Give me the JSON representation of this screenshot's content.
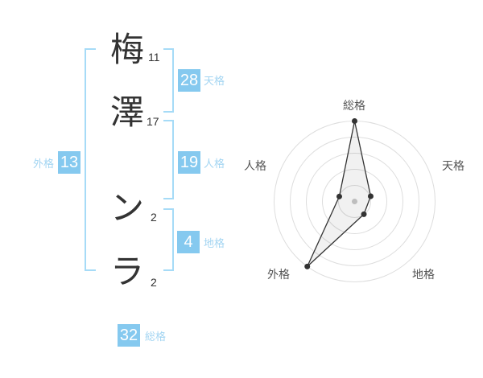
{
  "name_display": {
    "surname": [
      {
        "char": "梅",
        "strokes": "11"
      },
      {
        "char": "澤",
        "strokes": "17"
      }
    ],
    "given_name": [
      {
        "char": "ン",
        "strokes": "2"
      },
      {
        "char": "ラ",
        "strokes": "2"
      }
    ]
  },
  "gokaku": {
    "tenkaku": {
      "value": "28",
      "label": "天格"
    },
    "jinkaku": {
      "value": "19",
      "label": "人格"
    },
    "chikaku": {
      "value": "4",
      "label": "地格"
    },
    "gaikaku": {
      "value": "13",
      "label": "外格"
    },
    "soukaku": {
      "value": "32",
      "label": "総格"
    }
  },
  "colors": {
    "accent_blue": "#85c9ef",
    "light_blue_label": "#a3d5f2",
    "bracket_blue": "#a6dbf7",
    "dark_text": "#333333",
    "grid_gray": "#dddddd",
    "center_dot": "#c9c9c9",
    "polygon_stroke": "#333333",
    "polygon_fill": "rgba(0,0,0,0.055)"
  },
  "chart_data": {
    "type": "radar",
    "axes": [
      "総格",
      "天格",
      "地格",
      "外格",
      "人格"
    ],
    "values": [
      5,
      1.05,
      0.98,
      5,
      1
    ],
    "max": 5,
    "rings": 5,
    "grid": "concentric-circles",
    "legend": false,
    "title": ""
  }
}
